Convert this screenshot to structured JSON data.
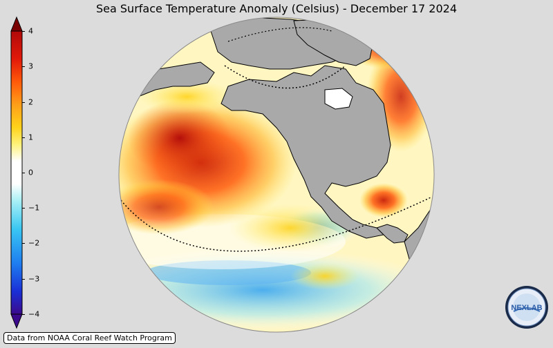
{
  "title": "Sea Surface Temperature Anomaly (Celsius) - December 17 2024",
  "colorbar": {
    "ticks": [
      "4",
      "3",
      "2",
      "1",
      "0",
      "−1",
      "−2",
      "−3",
      "−4"
    ],
    "min": -4,
    "max": 4,
    "colors": [
      "#3b0a8c",
      "#1a2fd6",
      "#1e7ef0",
      "#39c6f2",
      "#a8f0f5",
      "#ffffff",
      "#ffffff",
      "#fff27a",
      "#ffd21a",
      "#ff9f1a",
      "#ff5a0a",
      "#e21a0a",
      "#b10a0a",
      "#7a0000"
    ],
    "over_color": "#7a0000",
    "under_color": "#3b0a8c"
  },
  "map": {
    "land_color": "#a9a9a9",
    "ocean_colors": {
      "warm_strong": "#d42a0a",
      "warm": "#ff8a1a",
      "mild": "#ffe04a",
      "neutral": "#ffffff",
      "cool": "#9fe6f6",
      "cold": "#2b7fe8"
    }
  },
  "credit": "Data from NOAA Coral Reef Watch Program",
  "logo": {
    "name": "NESDIS / NEXLAB",
    "text": "NEXLAB"
  }
}
